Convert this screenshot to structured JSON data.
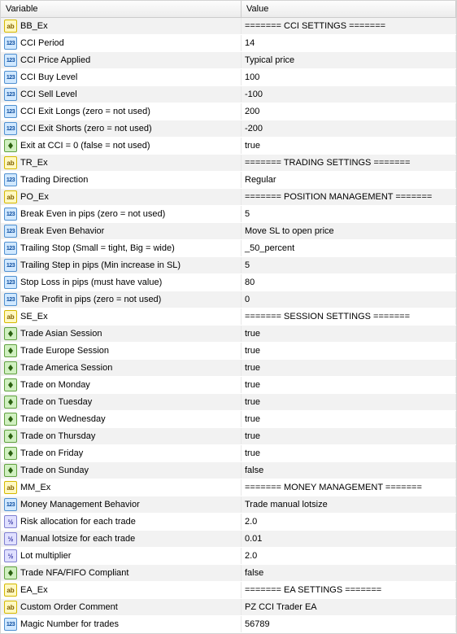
{
  "columns": {
    "variable": "Variable",
    "value": "Value"
  },
  "iconText": {
    "ab": "ab",
    "123": "123",
    "v2": "½"
  },
  "rows": [
    {
      "icon": "ab",
      "var": "BB_Ex",
      "val": "======= CCI SETTINGS ======="
    },
    {
      "icon": "123",
      "var": "CCI Period",
      "val": "14"
    },
    {
      "icon": "123",
      "var": "CCI Price Applied",
      "val": "Typical price"
    },
    {
      "icon": "123",
      "var": "CCI Buy Level",
      "val": "100"
    },
    {
      "icon": "123",
      "var": "CCI Sell Level",
      "val": "-100"
    },
    {
      "icon": "123",
      "var": "CCI Exit Longs (zero = not used)",
      "val": "200"
    },
    {
      "icon": "123",
      "var": "CCI Exit Shorts (zero = not used)",
      "val": "-200"
    },
    {
      "icon": "bool",
      "var": "Exit at CCI = 0 (false = not used)",
      "val": "true"
    },
    {
      "icon": "ab",
      "var": "TR_Ex",
      "val": "======= TRADING SETTINGS ======="
    },
    {
      "icon": "123",
      "var": "Trading Direction",
      "val": "Regular"
    },
    {
      "icon": "ab",
      "var": "PO_Ex",
      "val": "======= POSITION MANAGEMENT ======="
    },
    {
      "icon": "123",
      "var": "Break Even in pips (zero = not used)",
      "val": "5"
    },
    {
      "icon": "123",
      "var": "Break Even Behavior",
      "val": "Move SL to open price"
    },
    {
      "icon": "123",
      "var": "Trailing Stop (Small = tight, Big = wide)",
      "val": "_50_percent"
    },
    {
      "icon": "123",
      "var": "Trailing Step in pips (Min increase in SL)",
      "val": "5"
    },
    {
      "icon": "123",
      "var": "Stop Loss in pips (must have value)",
      "val": "80"
    },
    {
      "icon": "123",
      "var": "Take Profit in pips (zero = not used)",
      "val": "0"
    },
    {
      "icon": "ab",
      "var": "SE_Ex",
      "val": "======= SESSION SETTINGS ======="
    },
    {
      "icon": "bool",
      "var": "Trade Asian Session",
      "val": "true"
    },
    {
      "icon": "bool",
      "var": "Trade Europe Session",
      "val": "true"
    },
    {
      "icon": "bool",
      "var": "Trade America Session",
      "val": "true"
    },
    {
      "icon": "bool",
      "var": "Trade on Monday",
      "val": "true"
    },
    {
      "icon": "bool",
      "var": "Trade on Tuesday",
      "val": "true"
    },
    {
      "icon": "bool",
      "var": "Trade on Wednesday",
      "val": "true"
    },
    {
      "icon": "bool",
      "var": "Trade on Thursday",
      "val": "true"
    },
    {
      "icon": "bool",
      "var": "Trade on Friday",
      "val": "true"
    },
    {
      "icon": "bool",
      "var": "Trade on Sunday",
      "val": "false"
    },
    {
      "icon": "ab",
      "var": "MM_Ex",
      "val": "======= MONEY MANAGEMENT ======="
    },
    {
      "icon": "123",
      "var": "Money Management Behavior",
      "val": "Trade manual lotsize"
    },
    {
      "icon": "v2",
      "var": "Risk allocation for each trade",
      "val": "2.0"
    },
    {
      "icon": "v2",
      "var": "Manual lotsize for each trade",
      "val": "0.01"
    },
    {
      "icon": "v2",
      "var": "Lot multiplier",
      "val": "2.0"
    },
    {
      "icon": "bool",
      "var": "Trade NFA/FIFO Compliant",
      "val": "false"
    },
    {
      "icon": "ab",
      "var": "EA_Ex",
      "val": "======= EA SETTINGS ======="
    },
    {
      "icon": "ab",
      "var": "Custom Order Comment",
      "val": "PZ CCI Trader EA"
    },
    {
      "icon": "123",
      "var": "Magic Number for trades",
      "val": "56789"
    }
  ]
}
